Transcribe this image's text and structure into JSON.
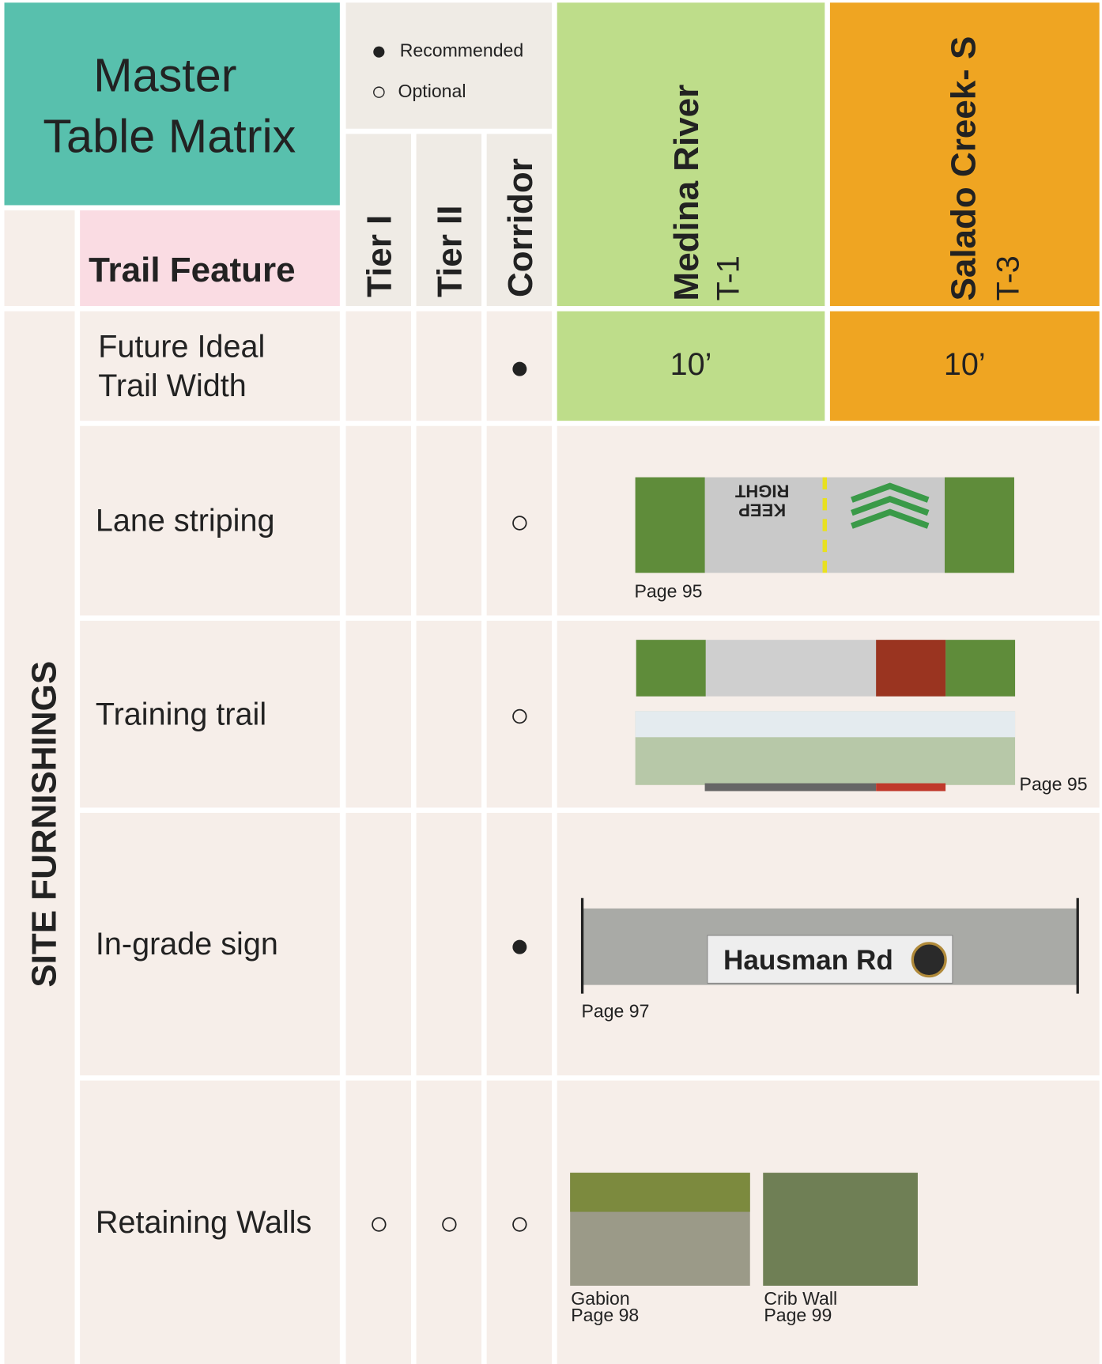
{
  "header": {
    "title": [
      "Master",
      "Table Matrix"
    ],
    "legend": [
      {
        "symbol": "●",
        "label": "Recommended"
      },
      {
        "symbol": "○",
        "label": "Optional"
      }
    ]
  },
  "columns": {
    "feature": "Trail Feature",
    "tiers": [
      "Tier I",
      "Tier II",
      "Corridor"
    ],
    "trails": [
      {
        "name": "Medina River",
        "code": "T-1"
      },
      {
        "name": "Salado Creek- S",
        "code": "T-3"
      }
    ]
  },
  "section": "SITE FURNISHINGS",
  "rows": [
    {
      "feature": [
        "Future Ideal",
        "Trail Width"
      ],
      "marks": [
        null,
        null,
        "●"
      ],
      "values": [
        "10’",
        "10’"
      ]
    },
    {
      "feature": [
        "Lane striping"
      ],
      "marks": [
        null,
        null,
        "○"
      ],
      "figure": {
        "text": [
          "KEEP",
          "RIGHT"
        ],
        "caption": "Page 95"
      }
    },
    {
      "feature": [
        "Training trail"
      ],
      "marks": [
        null,
        null,
        "○"
      ],
      "figure": {
        "caption": "Page 95"
      }
    },
    {
      "feature": [
        "In-grade sign"
      ],
      "marks": [
        null,
        null,
        "●"
      ],
      "figure": {
        "text": [
          "Hausman Rd"
        ],
        "caption": "Page 97"
      }
    },
    {
      "feature": [
        "Retaining Walls"
      ],
      "marks": [
        "○",
        "○",
        "○"
      ],
      "figures": [
        {
          "caption": [
            "Gabion",
            "Page 98"
          ]
        },
        {
          "caption": [
            "Crib Wall",
            "Page 99"
          ]
        }
      ]
    }
  ]
}
